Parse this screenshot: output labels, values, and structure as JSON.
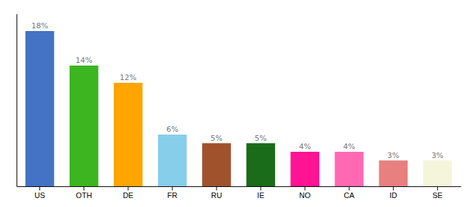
{
  "chart_data": {
    "type": "bar",
    "categories": [
      "US",
      "OTH",
      "DE",
      "FR",
      "RU",
      "IE",
      "NO",
      "CA",
      "ID",
      "SE"
    ],
    "values": [
      18,
      14,
      12,
      6,
      5,
      5,
      4,
      4,
      3,
      3
    ],
    "value_labels": [
      "18%",
      "14%",
      "12%",
      "6%",
      "5%",
      "5%",
      "4%",
      "4%",
      "3%",
      "3%"
    ],
    "colors": [
      "#4472C4",
      "#3CB520",
      "#FFA500",
      "#87CEEB",
      "#A0522D",
      "#1A6B1A",
      "#FF1493",
      "#FF69B4",
      "#E88080",
      "#F5F5DC"
    ],
    "ylim": [
      0,
      20
    ],
    "yticks": [],
    "tick_labels": "x",
    "data_labels": true
  }
}
